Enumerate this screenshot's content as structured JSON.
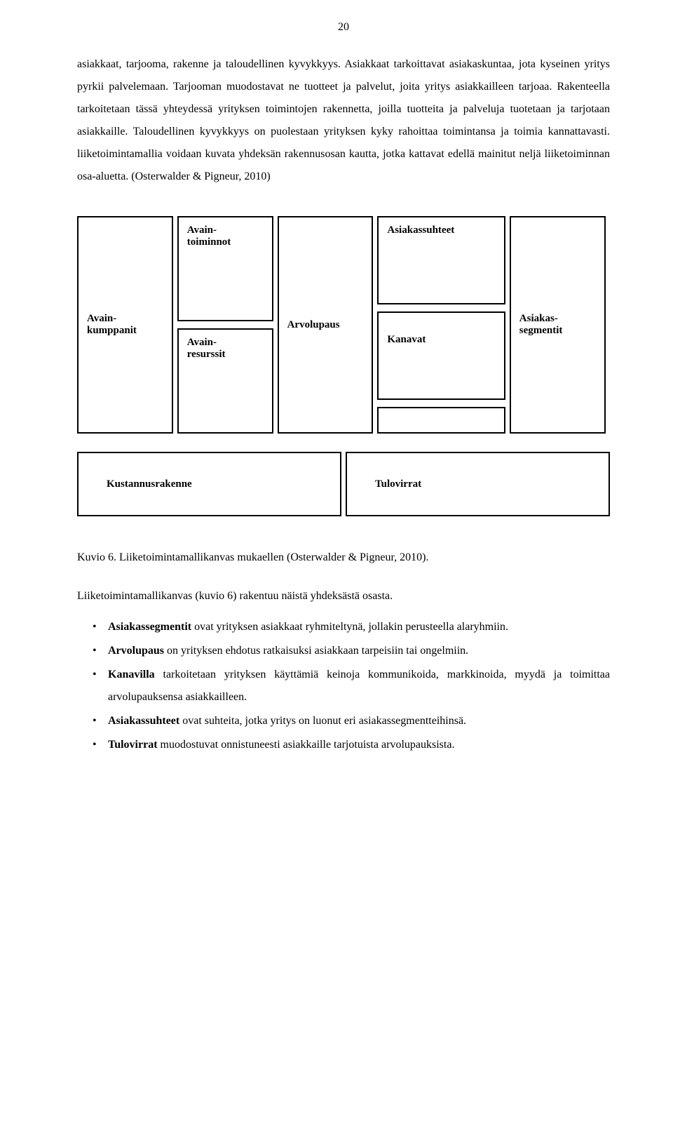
{
  "pageNumber": "20",
  "paragraph1": "asiakkaat, tarjooma, rakenne ja taloudellinen kyvykkyys. Asiakkaat tarkoittavat asiakaskuntaa, jota kyseinen yritys pyrkii palvelemaan. Tarjooman muodostavat ne tuotteet ja palvelut,  joita yritys asiakkailleen tarjoaa. Rakenteella tarkoitetaan tässä yhteydessä yrityksen toimintojen rakennetta, joilla tuotteita ja palveluja tuotetaan ja tarjotaan asiakkaille. Taloudellinen kyvykkyys on puolestaan yrityksen kyky rahoittaa toimintansa ja toimia kannattavasti. liiketoimintamallia voidaan kuvata yhdeksän rakennusosan kautta, jotka kattavat edellä mainitut neljä liiketoiminnan osa-aluetta. (Osterwalder & Pigneur, 2010)",
  "canvas": {
    "partners": "Avain-\nkumppanit",
    "activities": "Avain-\ntoiminnot",
    "resources": "Avain-\nresurssit",
    "value": "Arvolupaus",
    "relations": "Asiakassuhteet",
    "channels": "Kanavat",
    "segments": "Asiakas-\nsegmentit",
    "cost": "Kustannusrakenne",
    "revenue": "Tulovirrat"
  },
  "caption": "Kuvio 6. Liiketoimintamallikanvas mukaellen (Osterwalder & Pigneur, 2010).",
  "listIntro": "Liiketoimintamallikanvas (kuvio 6)  rakentuu näistä yhdeksästä osasta.",
  "bullets": {
    "b1bold": "Asiakassegmentit",
    "b1rest": " ovat yrityksen asiakkaat ryhmiteltynä, jollakin perusteella alaryhmiin.",
    "b2bold": "Arvolupaus",
    "b2rest": " on yrityksen ehdotus ratkaisuksi asiakkaan tarpeisiin tai ongelmiin.",
    "b3bold": "Kanavilla",
    "b3rest": " tarkoitetaan yrityksen käyttämiä keinoja kommunikoida, markkinoida, myydä ja toimittaa arvolupauksensa asiakkailleen.",
    "b4bold": "Asiakassuhteet",
    "b4rest": " ovat suhteita, jotka yritys on luonut eri asiakassegmentteihinsä.",
    "b5bold": "Tulovirrat",
    "b5rest": " muodostuvat onnistuneesti asiakkaille tarjotuista arvolupauksista."
  }
}
